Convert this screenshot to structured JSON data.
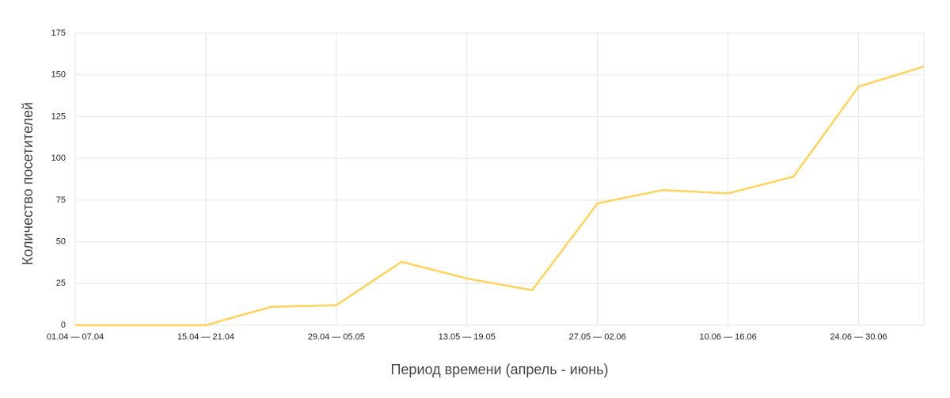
{
  "chart_data": {
    "type": "line",
    "x_label": "Период времени (апрель - июнь)",
    "y_label": "Количество посетителей",
    "categories": [
      "01.04 — 07.04",
      null,
      "15.04 — 21.04",
      null,
      "29.04 — 05.05",
      null,
      "13.05 — 19.05",
      null,
      "27.05 — 02.06",
      null,
      "10.06 — 16.06",
      null,
      "24.06 — 30.06",
      null
    ],
    "values": [
      0,
      0,
      0,
      11,
      12,
      38,
      28,
      21,
      73,
      81,
      79,
      89,
      143,
      155
    ],
    "color": "#ffd35c",
    "ylim": [
      0,
      175
    ],
    "yticks": [
      0,
      25,
      50,
      75,
      100,
      125,
      150,
      175
    ],
    "grid": true
  }
}
